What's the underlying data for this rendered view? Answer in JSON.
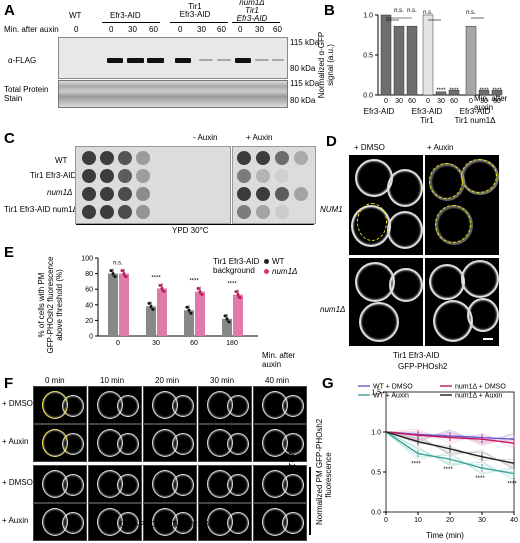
{
  "panels": {
    "A": "A",
    "B": "B",
    "C": "C",
    "D": "D",
    "E": "E",
    "F": "F",
    "G": "G"
  },
  "a": {
    "row_label": "Min. after auxin",
    "groups": [
      {
        "name": "WT",
        "times": [
          "0"
        ]
      },
      {
        "name": "Efr3-AID",
        "times": [
          "0",
          "30",
          "60"
        ]
      },
      {
        "name": "Tir1\nEfr3-AID",
        "times": [
          "0",
          "30",
          "60"
        ]
      },
      {
        "name": "num1Δ\nTir1\nEfr3-AID",
        "times": [
          "0",
          "30",
          "60"
        ]
      }
    ],
    "blot_label": "α-FLAG",
    "tps_label": "Total Protein\nStain",
    "markers": [
      "115 kDa",
      "80 kDa"
    ]
  },
  "b": {
    "ylabel": "Normalized α-GFP\nsignal (a.u.)",
    "xlabel": "Min. after\nauxin",
    "groups": [
      "Efr3-AID",
      "Efr3-AID\nTir1",
      "Efr3-AID\nTir1 num1Δ"
    ],
    "sig": [
      "n.s.",
      "n.s.",
      "n.s.",
      "****",
      "****",
      "n.s.",
      "****",
      "****"
    ]
  },
  "chart_data": {
    "type": "bar",
    "title": "",
    "ylabel": "Normalized α-GFP signal (a.u.)",
    "xlabel": "Min. after auxin",
    "ylim": [
      0,
      1.0
    ],
    "categories": [
      "0",
      "30",
      "60",
      "0",
      "30",
      "60",
      "0",
      "30",
      "60"
    ],
    "series": [
      {
        "name": "",
        "values": [
          1.0,
          0.86,
          0.86,
          1.0,
          0.04,
          0.06,
          0.86,
          0.06,
          0.06
        ]
      }
    ],
    "yticks": [
      "0.0",
      "0.5",
      "1.0"
    ]
  },
  "chart_e": {
    "type": "bar",
    "ylabel": "% of cells with PM\nGFP-PHOsh2 fluorescence\nabove threshold (%)",
    "xlabel": "Min. after\nauxin",
    "legend_title": "Tir1 Efr3-AID\nbackground",
    "categories": [
      "0",
      "30",
      "60",
      "180"
    ],
    "series": [
      {
        "name": "WT",
        "values": [
          80,
          38,
          33,
          22
        ]
      },
      {
        "name": "num1Δ",
        "values": [
          80,
          61,
          57,
          53
        ]
      }
    ],
    "ylim": [
      0,
      100
    ],
    "yticks": [
      "0",
      "20",
      "40",
      "60",
      "80",
      "100"
    ],
    "sig": [
      "n.s.",
      "****",
      "****",
      "****"
    ]
  },
  "c": {
    "cols": [
      "- Auxin",
      "+ Auxin"
    ],
    "rows": [
      "WT",
      "Tir1 Efr3-AID",
      "num1Δ",
      "Tir1 Efr3-AID num1Δ"
    ],
    "caption": "YPD 30°C"
  },
  "d": {
    "cols": [
      "+ DMSO",
      "+ Auxin"
    ],
    "rows": [
      "NUM1",
      "num1Δ"
    ],
    "caption1": "Tir1 Efr3-AID",
    "caption2": "GFP-PHOsh2"
  },
  "f": {
    "times": [
      "0 min",
      "10 min",
      "20 min",
      "30 min",
      "40 min"
    ],
    "rows": [
      "+ DMSO",
      "+ Auxin",
      "+ DMSO",
      "+ Auxin"
    ],
    "side": "num1Δ",
    "caption": "GFP-PHOsh2 Tir1 Efr3-AID"
  },
  "chart_g": {
    "type": "line",
    "ylabel": "Normalized PM GFP-PHOsh2\nfluorescence",
    "xlabel": "Time (min)",
    "x": [
      0,
      10,
      20,
      30,
      40
    ],
    "series": [
      {
        "name": "WT + DMSO",
        "color": "#6a5acd",
        "values": [
          1.0,
          0.97,
          0.95,
          0.93,
          0.91
        ]
      },
      {
        "name": "num1Δ + DMSO",
        "color": "#c2185b",
        "values": [
          1.0,
          0.96,
          0.93,
          0.91,
          0.86
        ]
      },
      {
        "name": "WT + Auxin",
        "color": "#3aa39a",
        "values": [
          1.0,
          0.73,
          0.66,
          0.55,
          0.48
        ]
      },
      {
        "name": "num1Δ + Auxin",
        "color": "#222222",
        "values": [
          1.0,
          0.88,
          0.79,
          0.69,
          0.61
        ]
      }
    ],
    "ylim": [
      0,
      1.5
    ],
    "yticks": [
      "0.0",
      "0.5",
      "1.0",
      "1.5"
    ],
    "xticks": [
      "0",
      "10",
      "20",
      "30",
      "40"
    ],
    "sig": [
      "****",
      "****",
      "****",
      "****"
    ]
  }
}
